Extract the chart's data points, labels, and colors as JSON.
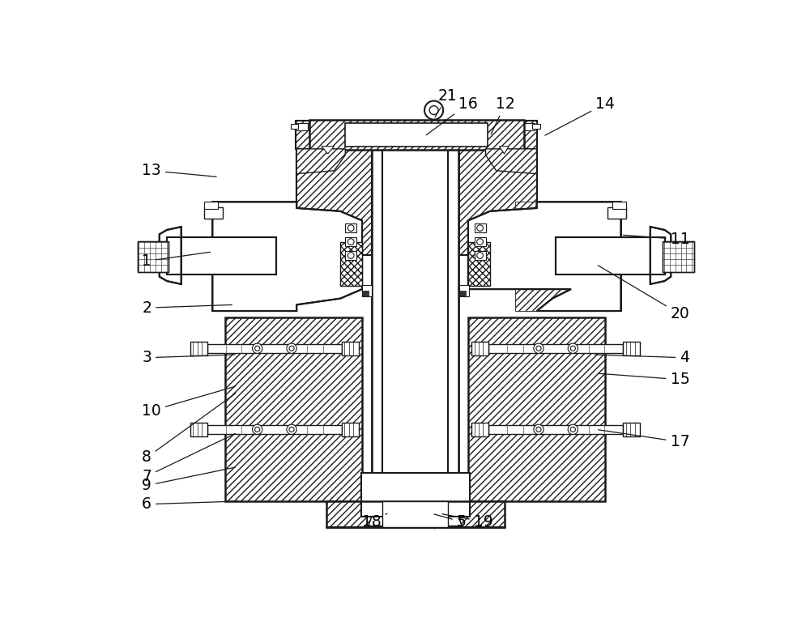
{
  "bg_color": "#ffffff",
  "line_color": "#1a1a1a",
  "fig_width": 10.0,
  "fig_height": 7.62,
  "dpi": 100,
  "annotations": [
    [
      "1",
      62,
      300,
      175,
      285,
      "left"
    ],
    [
      "2",
      62,
      375,
      210,
      370,
      "left"
    ],
    [
      "3",
      62,
      455,
      215,
      450,
      "left"
    ],
    [
      "4",
      940,
      455,
      785,
      450,
      "right"
    ],
    [
      "5",
      582,
      718,
      527,
      705,
      "right"
    ],
    [
      "6",
      62,
      690,
      220,
      685,
      "left"
    ],
    [
      "7",
      62,
      645,
      215,
      575,
      "left"
    ],
    [
      "8",
      62,
      615,
      215,
      510,
      "left"
    ],
    [
      "9",
      62,
      660,
      215,
      630,
      "left"
    ],
    [
      "10",
      62,
      540,
      215,
      500,
      "left"
    ],
    [
      "11",
      940,
      265,
      830,
      258,
      "right"
    ],
    [
      "12",
      660,
      48,
      620,
      100,
      "right"
    ],
    [
      "13",
      62,
      155,
      185,
      165,
      "left"
    ],
    [
      "14",
      820,
      48,
      705,
      100,
      "right"
    ],
    [
      "15",
      940,
      490,
      790,
      480,
      "right"
    ],
    [
      "16",
      600,
      48,
      515,
      100,
      "right"
    ],
    [
      "17",
      940,
      590,
      790,
      570,
      "right"
    ],
    [
      "18",
      415,
      718,
      455,
      705,
      "left"
    ],
    [
      "19",
      625,
      718,
      540,
      705,
      "right"
    ],
    [
      "20",
      940,
      385,
      790,
      305,
      "right"
    ],
    [
      "21",
      537,
      35,
      530,
      72,
      "left"
    ]
  ],
  "label_fontsize": 13.5
}
